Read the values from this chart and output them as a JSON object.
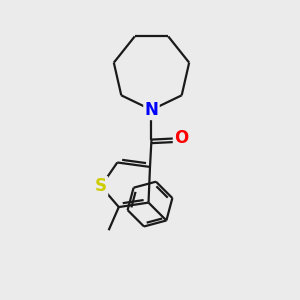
{
  "background_color": "#ebebeb",
  "bond_color": "#1a1a1a",
  "atom_colors": {
    "N": "#0000ff",
    "O": "#ff0000",
    "S": "#cccc00",
    "C": "#1a1a1a"
  },
  "bond_width": 1.6,
  "figsize": [
    3.0,
    3.0
  ],
  "dpi": 100,
  "xlim": [
    0,
    10
  ],
  "ylim": [
    0,
    10
  ]
}
